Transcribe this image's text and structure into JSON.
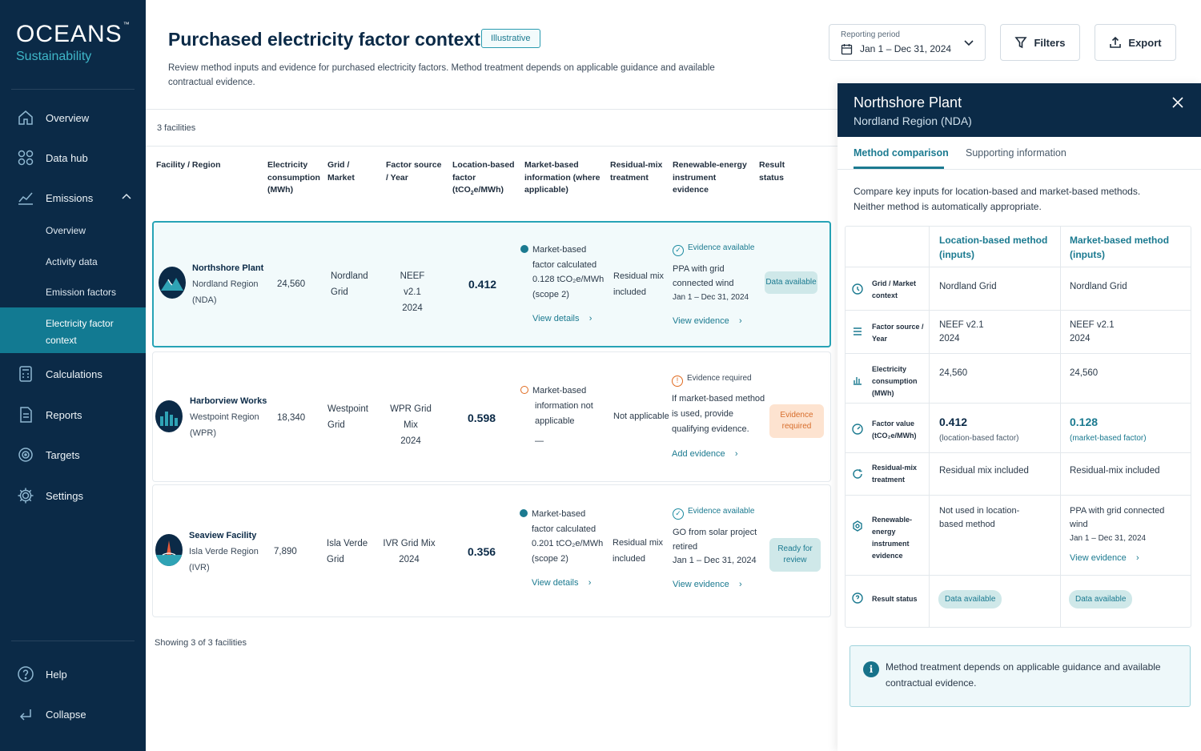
{
  "brand": {
    "name": "OCEANS",
    "tm": "™",
    "sub": "Sustainability"
  },
  "nav": {
    "overview": "Overview",
    "datahub": "Data hub",
    "emissions": "Emissions",
    "sub": {
      "overview": "Overview",
      "activity": "Activity data",
      "factors": "Emission factors",
      "elec": "Electricity factor context"
    },
    "calculations": "Calculations",
    "reports": "Reports",
    "targets": "Targets",
    "settings": "Settings",
    "help": "Help",
    "collapse": "Collapse"
  },
  "header": {
    "title": "Purchased electricity factor context",
    "tag": "Illustrative",
    "desc": "Review method inputs and evidence for purchased electricity factors. Method treatment depends on applicable guidance and available contractual evidence.",
    "period_label": "Reporting period",
    "period_value": "Jan 1 – Dec 31, 2024",
    "filters": "Filters",
    "export": "Export"
  },
  "table": {
    "count": "3 facilities",
    "headers": {
      "facility": "Facility / Region",
      "consumption": "Electricity consumption (MWh)",
      "grid": "Grid / Market",
      "source": "Factor source / Year",
      "loc": "Location-based factor",
      "loc_unit": "(tCO",
      "loc_unit2": "e/MWh)",
      "market": "Market-based information (where applicable)",
      "residual": "Residual-mix treatment",
      "renew": "Renewable-energy instrument evidence",
      "status": "Result status"
    },
    "rows": [
      {
        "name": "Northshore Plant",
        "region": "Nordland Region",
        "code": "(NDA)",
        "mwh": "24,560",
        "grid1": "Nordland",
        "grid2": "Grid",
        "src1": "NEEF v2.1",
        "src2": "2024",
        "factor": "0.412",
        "mkt1": "Market-based",
        "mkt2": "factor calculated",
        "mkt3": "0.128 tCO₂e/MWh",
        "mkt4": "(scope 2)",
        "mkt_link": "View details",
        "res1": "Residual mix",
        "res2": "included",
        "ev_h": "Evidence available",
        "ev1": "PPA with grid",
        "ev2": "connected wind",
        "ev3": "Jan 1 – Dec 31, 2024",
        "ev_link": "View evidence",
        "status": "Data available"
      },
      {
        "name": "Harborview Works",
        "region": "Westpoint Region",
        "code": "(WPR)",
        "mwh": "18,340",
        "grid1": "Westpoint",
        "grid2": "Grid",
        "src1": "WPR Grid Mix",
        "src2": "2024",
        "factor": "0.598",
        "mkt1": "Market-based",
        "mkt2": "information not",
        "mkt3": "applicable",
        "mkt4": "—",
        "res1": "Not applicable",
        "ev_h": "Evidence required",
        "ev1": "If market-based method",
        "ev2": "is used, provide",
        "ev3": "qualifying evidence.",
        "ev_link": "Add evidence",
        "status": "Evidence required"
      },
      {
        "name": "Seaview Facility",
        "region": "Isla Verde Region",
        "code": "(IVR)",
        "mwh": "7,890",
        "grid1": "Isla Verde",
        "grid2": "Grid",
        "src1": "IVR Grid Mix",
        "src2": "2024",
        "factor": "0.356",
        "mkt1": "Market-based",
        "mkt2": "factor calculated",
        "mkt3": "0.201 tCO₂e/MWh",
        "mkt4": "(scope 2)",
        "mkt_link": "View details",
        "res1": "Residual mix",
        "res2": "included",
        "ev_h": "Evidence available",
        "ev1": "GO from solar project",
        "ev2": "retired",
        "ev3": "Jan 1 – Dec 31, 2024",
        "ev_link": "View evidence",
        "status": "Ready for review"
      }
    ],
    "showing": "Showing 3 of 3 facilities"
  },
  "panel": {
    "title": "Northshore Plant",
    "subtitle": "Nordland Region (NDA)",
    "tab1": "Method comparison",
    "tab2": "Supporting information",
    "desc": "Compare key inputs for location-based and market-based methods. Neither method is automatically appropriate.",
    "col1": "Location-based method (inputs)",
    "col2": "Market-based method (inputs)",
    "rows": {
      "grid": {
        "label": "Grid / Market context",
        "a": "Nordland Grid",
        "b": "Nordland Grid"
      },
      "source": {
        "label": "Factor source / Year",
        "a1": "NEEF v2.1",
        "a2": "2024",
        "b1": "NEEF v2.1",
        "b2": "2024"
      },
      "consumption": {
        "label": "Electricity consumption (MWh)",
        "a": "24,560",
        "b": "24,560"
      },
      "factor": {
        "label": "Factor value (tCO₂e/MWh)",
        "a": "0.412",
        "a_sub": "(location-based factor)",
        "b": "0.128",
        "b_sub": "(market-based factor)"
      },
      "residual": {
        "label": "Residual-mix treatment",
        "a": "Residual mix included",
        "b": "Residual-mix included"
      },
      "renew": {
        "label": "Renewable-energy instrument evidence",
        "a": "Not used in location-based method",
        "b1": "PPA with grid connected wind",
        "b2": "Jan 1 – Dec 31, 2024",
        "b_link": "View evidence"
      },
      "status": {
        "label": "Result status",
        "a": "Data available",
        "b": "Data available"
      }
    },
    "info": "Method treatment depends on applicable guidance and available contractual evidence."
  }
}
